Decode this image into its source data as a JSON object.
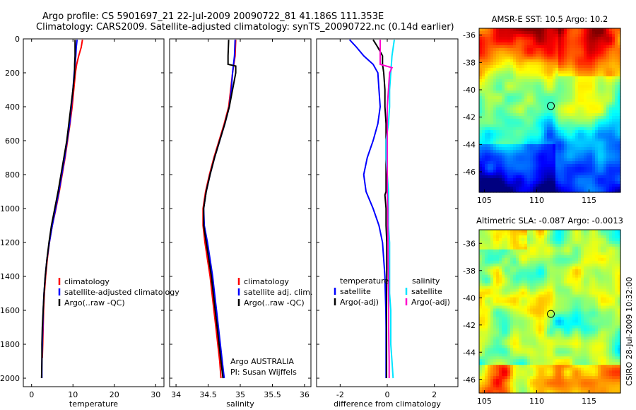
{
  "title": {
    "line1": "Argo profile: CS 5901697_21 22-Jul-2009 20090722_81 41.186S 111.353E",
    "line2": "Climatology: CARS2009. Satellite-adjusted climatology: synTS_20090722.nc (0.14d earlier)"
  },
  "credit": "CSIRO 28-Jul-2009 10:32:00",
  "annotation": {
    "line1": "Argo AUSTRALIA",
    "line2": "PI: Susan Wijffels"
  },
  "colors": {
    "climatology": "#ff0000",
    "satellite": "#0000ff",
    "argo": "#000000",
    "argo_adj": "#ff00cc",
    "satellite_sal": "#00e5ff"
  },
  "chart_data": [
    {
      "type": "line",
      "xlabel": "temperature",
      "ylim": [
        2050,
        0
      ],
      "xlim": [
        -2,
        32
      ],
      "xticks": [
        0,
        10,
        20,
        30
      ],
      "yticks": [
        0,
        200,
        400,
        600,
        800,
        1000,
        1200,
        1400,
        1600,
        1800,
        2000
      ],
      "legend": [
        "climatology",
        "satellite-adjusted climatology",
        "Argo(..raw -QC)"
      ],
      "series": [
        {
          "name": "climatology",
          "color": "#ff0000",
          "depth": [
            5,
            50,
            100,
            150,
            200,
            300,
            400,
            500,
            600,
            700,
            800,
            900,
            1000,
            1100,
            1200,
            1300,
            1400,
            1500,
            1600,
            1700,
            1800,
            1880
          ],
          "values": [
            12.3,
            12.0,
            11.4,
            10.9,
            10.6,
            10.2,
            9.8,
            9.3,
            8.7,
            8.1,
            7.4,
            6.7,
            5.9,
            5.0,
            4.3,
            3.8,
            3.4,
            3.1,
            2.9,
            2.8,
            2.7,
            2.6
          ]
        },
        {
          "name": "satellite-adjusted climatology",
          "color": "#0000ff",
          "depth": [
            5,
            50,
            100,
            150,
            200,
            300,
            400,
            500,
            600,
            700,
            800,
            900,
            1000,
            1100,
            1200,
            1300,
            1400,
            1500,
            1600,
            1700,
            1800,
            1900,
            2000
          ],
          "values": [
            11.0,
            10.8,
            10.7,
            10.5,
            10.3,
            10.0,
            9.6,
            9.2,
            8.6,
            8.0,
            7.3,
            6.6,
            5.8,
            5.0,
            4.3,
            3.7,
            3.3,
            3.0,
            2.8,
            2.7,
            2.6,
            2.5,
            2.5
          ]
        },
        {
          "name": "Argo(..raw -QC)",
          "color": "#000000",
          "depth": [
            5,
            50,
            100,
            150,
            200,
            300,
            400,
            500,
            600,
            700,
            800,
            900,
            1000,
            1100,
            1200,
            1300,
            1400,
            1500,
            1600,
            1700,
            1800,
            1900,
            2000
          ],
          "values": [
            10.5,
            10.5,
            10.5,
            10.4,
            10.4,
            10.0,
            9.5,
            9.0,
            8.5,
            7.8,
            7.1,
            6.4,
            5.6,
            4.8,
            4.2,
            3.7,
            3.3,
            3.0,
            2.8,
            2.6,
            2.5,
            2.5,
            2.4
          ]
        }
      ]
    },
    {
      "type": "line",
      "xlabel": "salinity",
      "ylim": [
        2050,
        0
      ],
      "xlim": [
        33.9,
        36.1
      ],
      "xticks": [
        34,
        34.5,
        35,
        35.5,
        36
      ],
      "legend": [
        "climatology",
        "satellite adj. clim.",
        "Argo(..raw -QC)"
      ],
      "series": [
        {
          "name": "climatology",
          "color": "#ff0000",
          "depth": [
            5,
            100,
            200,
            300,
            400,
            500,
            600,
            700,
            800,
            900,
            1000,
            1100,
            1200,
            1300,
            1400,
            1500,
            1600,
            1700,
            1800,
            1900,
            2000
          ],
          "values": [
            34.93,
            34.92,
            34.88,
            34.85,
            34.82,
            34.75,
            34.67,
            34.59,
            34.52,
            34.46,
            34.42,
            34.42,
            34.45,
            34.49,
            34.53,
            34.56,
            34.59,
            34.62,
            34.65,
            34.68,
            34.7
          ]
        },
        {
          "name": "satellite adj. clim.",
          "color": "#0000ff",
          "depth": [
            5,
            100,
            200,
            300,
            400,
            500,
            600,
            700,
            800,
            900,
            1000,
            1100,
            1200,
            1300,
            1400,
            1500,
            1600,
            1700,
            1800,
            1900,
            2000
          ],
          "values": [
            34.92,
            34.91,
            34.88,
            34.86,
            34.83,
            34.76,
            34.68,
            34.6,
            34.53,
            34.47,
            34.43,
            34.44,
            34.49,
            34.53,
            34.57,
            34.6,
            34.63,
            34.66,
            34.69,
            34.72,
            34.75
          ]
        },
        {
          "name": "Argo(..raw -QC)",
          "color": "#000000",
          "depth": [
            5,
            100,
            150,
            160,
            200,
            300,
            400,
            500,
            600,
            700,
            800,
            900,
            1000,
            1100,
            1200,
            1300,
            1400,
            1500,
            1600,
            1700,
            1800,
            1900,
            2000
          ],
          "values": [
            34.82,
            34.81,
            34.81,
            34.93,
            34.93,
            34.88,
            34.83,
            34.76,
            34.68,
            34.6,
            34.53,
            34.47,
            34.43,
            34.43,
            34.47,
            34.51,
            34.55,
            34.58,
            34.61,
            34.64,
            34.67,
            34.7,
            34.73
          ]
        }
      ]
    },
    {
      "type": "line",
      "xlabel": "difference from climatology",
      "ylim": [
        2050,
        0
      ],
      "xlim": [
        -3,
        3
      ],
      "xticks": [
        -2,
        0,
        2
      ],
      "legend": [
        "temperature",
        "satellite",
        "Argo(-adj)",
        "salinity",
        "satellite",
        "Argo(-adj)"
      ],
      "series": [
        {
          "name": "temperature satellite",
          "color": "#0000ff",
          "depth": [
            5,
            50,
            100,
            150,
            200,
            300,
            400,
            500,
            600,
            700,
            800,
            900,
            1000,
            1100,
            1200,
            1300,
            1400,
            1500,
            1600,
            1700,
            1800,
            1900,
            2000
          ],
          "values": [
            -1.6,
            -1.3,
            -1.0,
            -0.6,
            -0.4,
            -0.35,
            -0.3,
            -0.4,
            -0.6,
            -0.85,
            -1.0,
            -0.9,
            -0.6,
            -0.35,
            -0.2,
            -0.15,
            -0.1,
            -0.08,
            -0.06,
            -0.05,
            -0.05,
            -0.05,
            -0.05
          ]
        },
        {
          "name": "temperature Argo(-adj)",
          "color": "#000000",
          "depth": [
            5,
            50,
            100,
            150,
            200,
            300,
            400,
            500,
            600,
            700,
            800,
            900,
            920,
            1000,
            1100,
            1200,
            1300,
            1400,
            1500,
            1600,
            1700,
            1800,
            1900,
            2000
          ],
          "values": [
            -0.6,
            -0.4,
            -0.2,
            -0.2,
            -0.15,
            -0.1,
            -0.1,
            -0.05,
            -0.05,
            -0.05,
            -0.05,
            -0.05,
            -0.1,
            -0.05,
            -0.05,
            -0.02,
            -0.02,
            -0.02,
            -0.03,
            -0.03,
            -0.03,
            -0.03,
            -0.03,
            -0.03
          ]
        },
        {
          "name": "salinity satellite",
          "color": "#00e5ff",
          "depth": [
            5,
            100,
            200,
            300,
            400,
            500,
            600,
            700,
            800,
            900,
            1000,
            1100,
            1200,
            1300,
            1400,
            1500,
            1600,
            1700,
            1800,
            1900,
            2000
          ],
          "values": [
            0.3,
            0.2,
            0.15,
            0.1,
            0.1,
            0.05,
            -0.05,
            -0.05,
            0.0,
            0.05,
            0.05,
            0.05,
            0.1,
            0.1,
            0.1,
            0.1,
            0.15,
            0.15,
            0.15,
            0.2,
            0.25
          ]
        },
        {
          "name": "salinity Argo(-adj)",
          "color": "#ff00cc",
          "depth": [
            5,
            100,
            150,
            170,
            200,
            300,
            400,
            500,
            600,
            700,
            800,
            900,
            1000,
            1100,
            1200,
            1300,
            1400,
            1500,
            1600,
            1700,
            1800,
            1900,
            2000
          ],
          "values": [
            -0.3,
            -0.3,
            -0.3,
            0.2,
            0.1,
            0.05,
            0.0,
            0.0,
            0.0,
            0.0,
            0.0,
            0.0,
            0.02,
            0.02,
            0.03,
            0.04,
            0.05,
            0.05,
            0.06,
            0.06,
            0.07,
            0.08,
            0.08
          ]
        }
      ]
    },
    {
      "type": "heatmap",
      "title": "AMSR-E SST: 10.5 Argo: 10.2",
      "xlim": [
        104.5,
        118
      ],
      "ylim": [
        -47.5,
        -35.5
      ],
      "xticks": [
        105,
        110,
        115
      ],
      "yticks": [
        -36,
        -38,
        -40,
        -42,
        -44,
        -46
      ],
      "marker": {
        "lon": 111.353,
        "lat": -41.186
      }
    },
    {
      "type": "heatmap",
      "title": "Altimetric SLA: -0.087 Argo: -0.0013",
      "xlim": [
        104.5,
        118
      ],
      "ylim": [
        -47,
        -35
      ],
      "xticks": [
        105,
        110,
        115
      ],
      "yticks": [
        -36,
        -38,
        -40,
        -42,
        -44,
        -46
      ],
      "marker": {
        "lon": 111.353,
        "lat": -41.186
      }
    }
  ]
}
